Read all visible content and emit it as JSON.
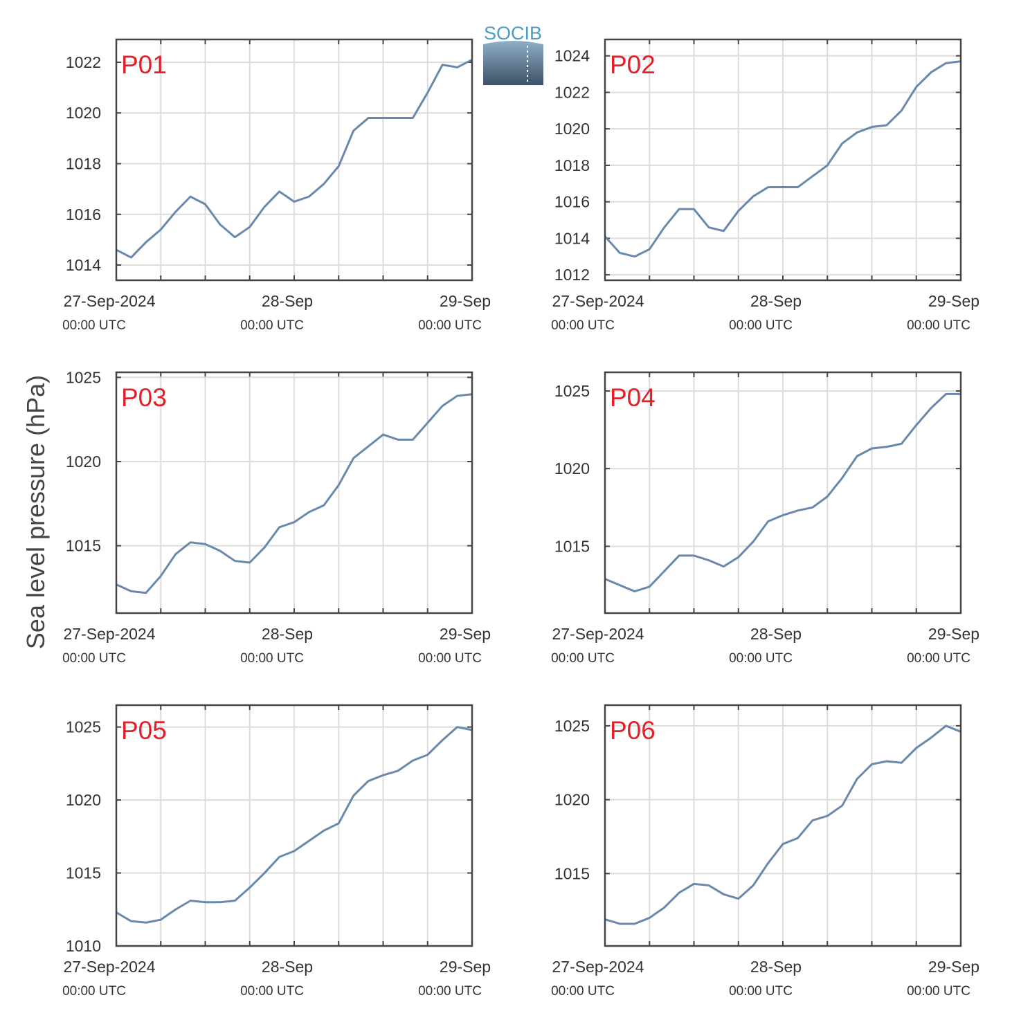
{
  "ylabel": "Sea level pressure (hPa)",
  "logo": "SOCIB",
  "chart_data": [
    {
      "type": "line",
      "title": "P01",
      "color": "#6a88aa",
      "grid": true,
      "x": [
        "2024-09-27T00:00",
        "2024-09-27T02:00",
        "2024-09-27T04:00",
        "2024-09-27T06:00",
        "2024-09-27T08:00",
        "2024-09-27T10:00",
        "2024-09-27T12:00",
        "2024-09-27T14:00",
        "2024-09-27T16:00",
        "2024-09-27T18:00",
        "2024-09-27T20:00",
        "2024-09-27T22:00",
        "2024-09-28T00:00",
        "2024-09-28T02:00",
        "2024-09-28T04:00",
        "2024-09-28T06:00",
        "2024-09-28T08:00",
        "2024-09-28T10:00",
        "2024-09-28T12:00",
        "2024-09-28T14:00",
        "2024-09-28T16:00",
        "2024-09-28T18:00",
        "2024-09-28T20:00",
        "2024-09-28T22:00",
        "2024-09-29T00:00"
      ],
      "values": [
        1014.6,
        1014.3,
        1014.9,
        1015.4,
        1016.1,
        1016.7,
        1016.4,
        1015.6,
        1015.1,
        1015.5,
        1016.3,
        1016.9,
        1016.5,
        1016.7,
        1017.2,
        1017.9,
        1019.3,
        1019.8,
        1019.8,
        1019.8,
        1019.8,
        1020.8,
        1021.9,
        1021.8,
        1022.1
      ],
      "xlim": [
        "2024-09-27T00:00",
        "2024-09-29T00:00"
      ],
      "xticks": [
        {
          "value": "2024-09-27T00:00",
          "label": "27-Sep-2024"
        },
        {
          "value": "2024-09-28T00:00",
          "label": "28-Sep"
        },
        {
          "value": "2024-09-29T00:00",
          "label": "29-Sep"
        }
      ],
      "xtick_sublabels": [
        "00:00 UTC",
        "00:00 UTC",
        "00:00 UTC"
      ],
      "xminor": [
        "2024-09-27T06:00",
        "2024-09-27T12:00",
        "2024-09-27T18:00",
        "2024-09-28T06:00",
        "2024-09-28T12:00",
        "2024-09-28T18:00"
      ],
      "ylim": [
        1013.4,
        1022.9
      ],
      "yticks": [
        1014,
        1016,
        1018,
        1020,
        1022
      ]
    },
    {
      "type": "line",
      "title": "P02",
      "color": "#6a88aa",
      "grid": true,
      "x": [
        "2024-09-27T00:00",
        "2024-09-27T02:00",
        "2024-09-27T04:00",
        "2024-09-27T06:00",
        "2024-09-27T08:00",
        "2024-09-27T10:00",
        "2024-09-27T12:00",
        "2024-09-27T14:00",
        "2024-09-27T16:00",
        "2024-09-27T18:00",
        "2024-09-27T20:00",
        "2024-09-27T22:00",
        "2024-09-28T00:00",
        "2024-09-28T02:00",
        "2024-09-28T04:00",
        "2024-09-28T06:00",
        "2024-09-28T08:00",
        "2024-09-28T10:00",
        "2024-09-28T12:00",
        "2024-09-28T14:00",
        "2024-09-28T16:00",
        "2024-09-28T18:00",
        "2024-09-28T20:00",
        "2024-09-28T22:00",
        "2024-09-29T00:00"
      ],
      "values": [
        1014.1,
        1013.2,
        1013.0,
        1013.4,
        1014.6,
        1015.6,
        1015.6,
        1014.6,
        1014.4,
        1015.5,
        1016.3,
        1016.8,
        1016.8,
        1016.8,
        1017.4,
        1018.0,
        1019.2,
        1019.8,
        1020.1,
        1020.2,
        1021.0,
        1022.3,
        1023.1,
        1023.6,
        1023.7
      ],
      "xlim": [
        "2024-09-27T00:00",
        "2024-09-29T00:00"
      ],
      "xticks": [
        {
          "value": "2024-09-27T00:00",
          "label": "27-Sep-2024"
        },
        {
          "value": "2024-09-28T00:00",
          "label": "28-Sep"
        },
        {
          "value": "2024-09-29T00:00",
          "label": "29-Sep"
        }
      ],
      "xtick_sublabels": [
        "00:00 UTC",
        "00:00 UTC",
        "00:00 UTC"
      ],
      "xminor": [
        "2024-09-27T06:00",
        "2024-09-27T12:00",
        "2024-09-27T18:00",
        "2024-09-28T06:00",
        "2024-09-28T12:00",
        "2024-09-28T18:00"
      ],
      "ylim": [
        1011.7,
        1024.9
      ],
      "yticks": [
        1012,
        1014,
        1016,
        1018,
        1020,
        1022,
        1024
      ]
    },
    {
      "type": "line",
      "title": "P03",
      "color": "#6a88aa",
      "grid": true,
      "x": [
        "2024-09-27T00:00",
        "2024-09-27T02:00",
        "2024-09-27T04:00",
        "2024-09-27T06:00",
        "2024-09-27T08:00",
        "2024-09-27T10:00",
        "2024-09-27T12:00",
        "2024-09-27T14:00",
        "2024-09-27T16:00",
        "2024-09-27T18:00",
        "2024-09-27T20:00",
        "2024-09-27T22:00",
        "2024-09-28T00:00",
        "2024-09-28T02:00",
        "2024-09-28T04:00",
        "2024-09-28T06:00",
        "2024-09-28T08:00",
        "2024-09-28T10:00",
        "2024-09-28T12:00",
        "2024-09-28T14:00",
        "2024-09-28T16:00",
        "2024-09-28T18:00",
        "2024-09-28T20:00",
        "2024-09-28T22:00",
        "2024-09-29T00:00"
      ],
      "values": [
        1012.7,
        1012.3,
        1012.2,
        1013.2,
        1014.5,
        1015.2,
        1015.1,
        1014.7,
        1014.1,
        1014.0,
        1014.9,
        1016.1,
        1016.4,
        1017.0,
        1017.4,
        1018.6,
        1020.2,
        1020.9,
        1021.6,
        1021.3,
        1021.3,
        1022.3,
        1023.3,
        1023.9,
        1024.0
      ],
      "xlim": [
        "2024-09-27T00:00",
        "2024-09-29T00:00"
      ],
      "xticks": [
        {
          "value": "2024-09-27T00:00",
          "label": "27-Sep-2024"
        },
        {
          "value": "2024-09-28T00:00",
          "label": "28-Sep"
        },
        {
          "value": "2024-09-29T00:00",
          "label": "29-Sep"
        }
      ],
      "xtick_sublabels": [
        "00:00 UTC",
        "00:00 UTC",
        "00:00 UTC"
      ],
      "xminor": [
        "2024-09-27T06:00",
        "2024-09-27T12:00",
        "2024-09-27T18:00",
        "2024-09-28T06:00",
        "2024-09-28T12:00",
        "2024-09-28T18:00"
      ],
      "ylim": [
        1011.0,
        1025.3
      ],
      "yticks": [
        1015,
        1020,
        1025
      ]
    },
    {
      "type": "line",
      "title": "P04",
      "color": "#6a88aa",
      "grid": true,
      "x": [
        "2024-09-27T00:00",
        "2024-09-27T02:00",
        "2024-09-27T04:00",
        "2024-09-27T06:00",
        "2024-09-27T08:00",
        "2024-09-27T10:00",
        "2024-09-27T12:00",
        "2024-09-27T14:00",
        "2024-09-27T16:00",
        "2024-09-27T18:00",
        "2024-09-27T20:00",
        "2024-09-27T22:00",
        "2024-09-28T00:00",
        "2024-09-28T02:00",
        "2024-09-28T04:00",
        "2024-09-28T06:00",
        "2024-09-28T08:00",
        "2024-09-28T10:00",
        "2024-09-28T12:00",
        "2024-09-28T14:00",
        "2024-09-28T16:00",
        "2024-09-28T18:00",
        "2024-09-28T20:00",
        "2024-09-28T22:00",
        "2024-09-29T00:00"
      ],
      "values": [
        1012.9,
        1012.5,
        1012.1,
        1012.4,
        1013.4,
        1014.4,
        1014.4,
        1014.1,
        1013.7,
        1014.3,
        1015.3,
        1016.6,
        1017.0,
        1017.3,
        1017.5,
        1018.2,
        1019.4,
        1020.8,
        1021.3,
        1021.4,
        1021.6,
        1022.8,
        1023.9,
        1024.8,
        1024.8
      ],
      "xlim": [
        "2024-09-27T00:00",
        "2024-09-29T00:00"
      ],
      "xticks": [
        {
          "value": "2024-09-27T00:00",
          "label": "27-Sep-2024"
        },
        {
          "value": "2024-09-28T00:00",
          "label": "28-Sep"
        },
        {
          "value": "2024-09-29T00:00",
          "label": "29-Sep"
        }
      ],
      "xtick_sublabels": [
        "00:00 UTC",
        "00:00 UTC",
        "00:00 UTC"
      ],
      "xminor": [
        "2024-09-27T06:00",
        "2024-09-27T12:00",
        "2024-09-27T18:00",
        "2024-09-28T06:00",
        "2024-09-28T12:00",
        "2024-09-28T18:00"
      ],
      "ylim": [
        1010.7,
        1026.2
      ],
      "yticks": [
        1015,
        1020,
        1025
      ]
    },
    {
      "type": "line",
      "title": "P05",
      "color": "#6a88aa",
      "grid": true,
      "x": [
        "2024-09-27T00:00",
        "2024-09-27T02:00",
        "2024-09-27T04:00",
        "2024-09-27T06:00",
        "2024-09-27T08:00",
        "2024-09-27T10:00",
        "2024-09-27T12:00",
        "2024-09-27T14:00",
        "2024-09-27T16:00",
        "2024-09-27T18:00",
        "2024-09-27T20:00",
        "2024-09-27T22:00",
        "2024-09-28T00:00",
        "2024-09-28T02:00",
        "2024-09-28T04:00",
        "2024-09-28T06:00",
        "2024-09-28T08:00",
        "2024-09-28T10:00",
        "2024-09-28T12:00",
        "2024-09-28T14:00",
        "2024-09-28T16:00",
        "2024-09-28T18:00",
        "2024-09-28T20:00",
        "2024-09-28T22:00",
        "2024-09-29T00:00"
      ],
      "values": [
        1012.3,
        1011.7,
        1011.6,
        1011.8,
        1012.5,
        1013.1,
        1013.0,
        1013.0,
        1013.1,
        1014.0,
        1015.0,
        1016.1,
        1016.5,
        1017.2,
        1017.9,
        1018.4,
        1020.3,
        1021.3,
        1021.7,
        1022.0,
        1022.7,
        1023.1,
        1024.1,
        1025.0,
        1024.8
      ],
      "xlim": [
        "2024-09-27T00:00",
        "2024-09-29T00:00"
      ],
      "xticks": [
        {
          "value": "2024-09-27T00:00",
          "label": "27-Sep-2024"
        },
        {
          "value": "2024-09-28T00:00",
          "label": "28-Sep"
        },
        {
          "value": "2024-09-29T00:00",
          "label": "29-Sep"
        }
      ],
      "xtick_sublabels": [
        "00:00 UTC",
        "00:00 UTC",
        "00:00 UTC"
      ],
      "xminor": [
        "2024-09-27T06:00",
        "2024-09-27T12:00",
        "2024-09-27T18:00",
        "2024-09-28T06:00",
        "2024-09-28T12:00",
        "2024-09-28T18:00"
      ],
      "ylim": [
        1010,
        1026.5
      ],
      "yticks": [
        1010,
        1015,
        1020,
        1025
      ]
    },
    {
      "type": "line",
      "title": "P06",
      "color": "#6a88aa",
      "grid": true,
      "x": [
        "2024-09-27T00:00",
        "2024-09-27T02:00",
        "2024-09-27T04:00",
        "2024-09-27T06:00",
        "2024-09-27T08:00",
        "2024-09-27T10:00",
        "2024-09-27T12:00",
        "2024-09-27T14:00",
        "2024-09-27T16:00",
        "2024-09-27T18:00",
        "2024-09-27T20:00",
        "2024-09-27T22:00",
        "2024-09-28T00:00",
        "2024-09-28T02:00",
        "2024-09-28T04:00",
        "2024-09-28T06:00",
        "2024-09-28T08:00",
        "2024-09-28T10:00",
        "2024-09-28T12:00",
        "2024-09-28T14:00",
        "2024-09-28T16:00",
        "2024-09-28T18:00",
        "2024-09-28T20:00",
        "2024-09-28T22:00",
        "2024-09-29T00:00"
      ],
      "values": [
        1011.9,
        1011.6,
        1011.6,
        1012.0,
        1012.7,
        1013.7,
        1014.3,
        1014.2,
        1013.6,
        1013.3,
        1014.2,
        1015.7,
        1017.0,
        1017.4,
        1018.6,
        1018.9,
        1019.6,
        1021.4,
        1022.4,
        1022.6,
        1022.5,
        1023.5,
        1024.2,
        1025.0,
        1024.6
      ],
      "xlim": [
        "2024-09-27T00:00",
        "2024-09-29T00:00"
      ],
      "xticks": [
        {
          "value": "2024-09-27T00:00",
          "label": "27-Sep-2024"
        },
        {
          "value": "2024-09-28T00:00",
          "label": "28-Sep"
        },
        {
          "value": "2024-09-29T00:00",
          "label": "29-Sep"
        }
      ],
      "xtick_sublabels": [
        "00:00 UTC",
        "00:00 UTC",
        "00:00 UTC"
      ],
      "xminor": [
        "2024-09-27T06:00",
        "2024-09-27T12:00",
        "2024-09-27T18:00",
        "2024-09-28T06:00",
        "2024-09-28T12:00",
        "2024-09-28T18:00"
      ],
      "ylim": [
        1010.1,
        1026.4
      ],
      "yticks": [
        1015,
        1020,
        1025
      ]
    }
  ]
}
